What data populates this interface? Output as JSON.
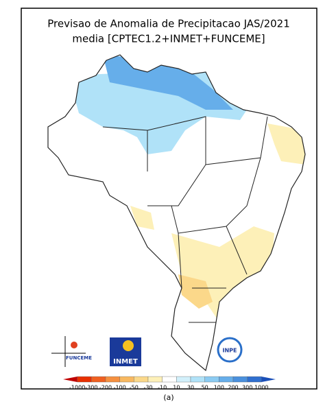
{
  "header": {
    "title_line1": "Previsao de Anomalia de Precipitacao JAS/2021",
    "title_line2": "media [CPTEC1.2+INMET+FUNCEME]"
  },
  "logos": {
    "funceme": "FUNCEME",
    "inmet": "INMET",
    "inpe": "INPE"
  },
  "legend": {
    "labels": [
      -1000,
      -300,
      -200,
      -100,
      -50,
      -30,
      -10,
      10,
      30,
      50,
      100,
      200,
      300,
      1000
    ],
    "colors": [
      "#c00000",
      "#e83000",
      "#f06020",
      "#f59040",
      "#f8b860",
      "#fbd88a",
      "#fdf0b8",
      "#ffffff",
      "#d2f0fb",
      "#b0e2f8",
      "#8ccbf2",
      "#66aeea",
      "#4a90dd",
      "#2f6fcf",
      "#1a4fb8"
    ]
  },
  "caption": "(a)"
}
